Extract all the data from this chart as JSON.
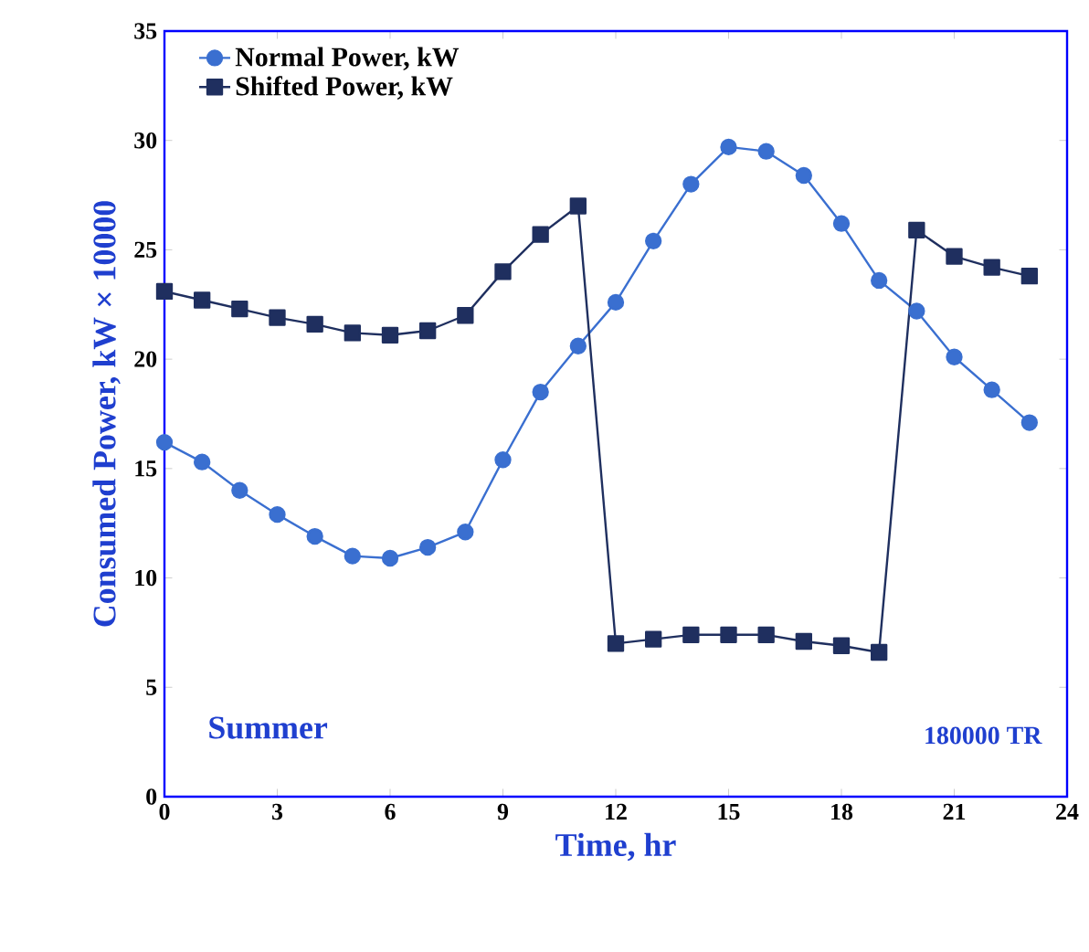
{
  "chart_data": {
    "type": "line",
    "xlabel": "Time, hr",
    "ylabel": "Consumed Power,  kW × 10000",
    "x": [
      0,
      1,
      2,
      3,
      4,
      5,
      6,
      7,
      8,
      9,
      10,
      11,
      12,
      13,
      14,
      15,
      16,
      17,
      18,
      19,
      20,
      21,
      22,
      23
    ],
    "series": [
      {
        "name": "Normal Power, kW",
        "color": "#3a6fd0",
        "marker": "circle",
        "values": [
          16.2,
          15.3,
          14.0,
          12.9,
          11.9,
          11.0,
          10.9,
          11.4,
          12.1,
          15.4,
          18.5,
          20.6,
          22.6,
          25.4,
          28.0,
          29.7,
          29.5,
          28.4,
          26.2,
          23.6,
          22.2,
          20.1,
          18.6,
          17.1
        ]
      },
      {
        "name": "Shifted Power, kW",
        "color": "#1f2f5f",
        "marker": "square",
        "values": [
          23.1,
          22.7,
          22.3,
          21.9,
          21.6,
          21.2,
          21.1,
          21.3,
          22.0,
          24.0,
          25.7,
          27.0,
          7.0,
          7.2,
          7.4,
          7.4,
          7.4,
          7.1,
          6.9,
          6.6,
          25.9,
          24.7,
          24.2,
          23.8
        ]
      }
    ],
    "xlim": [
      0,
      24
    ],
    "xticks": [
      0,
      3,
      6,
      9,
      12,
      15,
      18,
      21,
      24
    ],
    "ylim": [
      0,
      35
    ],
    "yticks": [
      0,
      5,
      10,
      15,
      20,
      25,
      30,
      35
    ],
    "legend": "top left",
    "line_style": "solid",
    "annotations": [
      "Summer",
      "180000 TR"
    ]
  }
}
